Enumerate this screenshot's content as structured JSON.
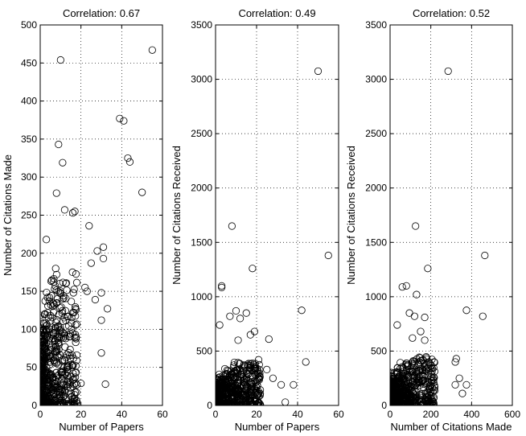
{
  "chart_data": [
    {
      "type": "scatter",
      "title": "Correlation: 0.67",
      "xlabel": "Number of Papers",
      "ylabel": "Number of Citations Made",
      "xlim": [
        0,
        60
      ],
      "ylim": [
        0,
        500
      ],
      "xticks": [
        0,
        20,
        40,
        60
      ],
      "yticks": [
        0,
        50,
        100,
        150,
        200,
        250,
        300,
        350,
        400,
        450,
        500
      ],
      "grid": true,
      "marker": "circle-open",
      "color": "#000000",
      "outliers": [
        {
          "x": 55,
          "y": 467
        },
        {
          "x": 10,
          "y": 454
        },
        {
          "x": 39,
          "y": 377
        },
        {
          "x": 41,
          "y": 374
        },
        {
          "x": 9,
          "y": 343
        },
        {
          "x": 43,
          "y": 325
        },
        {
          "x": 44,
          "y": 320
        },
        {
          "x": 11,
          "y": 319
        },
        {
          "x": 50,
          "y": 280
        },
        {
          "x": 8,
          "y": 279
        },
        {
          "x": 12,
          "y": 257
        },
        {
          "x": 17,
          "y": 255
        },
        {
          "x": 16,
          "y": 253
        },
        {
          "x": 24,
          "y": 236
        },
        {
          "x": 3,
          "y": 218
        },
        {
          "x": 31,
          "y": 208
        },
        {
          "x": 28,
          "y": 203
        },
        {
          "x": 31,
          "y": 193
        },
        {
          "x": 25,
          "y": 187
        },
        {
          "x": 22,
          "y": 155
        },
        {
          "x": 23,
          "y": 150
        },
        {
          "x": 30,
          "y": 148
        },
        {
          "x": 27,
          "y": 139
        },
        {
          "x": 33,
          "y": 127
        },
        {
          "x": 30,
          "y": 112
        },
        {
          "x": 30,
          "y": 69
        },
        {
          "x": 32,
          "y": 28
        },
        {
          "x": 16,
          "y": 25
        },
        {
          "x": 20,
          "y": 29
        }
      ],
      "cluster": {
        "x_max": 18,
        "y_max": 180,
        "point_count": 650
      }
    },
    {
      "type": "scatter",
      "title": "Correlation: 0.49",
      "xlabel": "Number of Papers",
      "ylabel": "Number of Citations Received",
      "xlim": [
        0,
        60
      ],
      "ylim": [
        0,
        3500
      ],
      "xticks": [
        0,
        20,
        40,
        60
      ],
      "yticks": [
        0,
        500,
        1000,
        1500,
        2000,
        2500,
        3000,
        3500
      ],
      "grid": true,
      "marker": "circle-open",
      "color": "#000000",
      "outliers": [
        {
          "x": 50,
          "y": 3075
        },
        {
          "x": 8,
          "y": 1650
        },
        {
          "x": 55,
          "y": 1380
        },
        {
          "x": 18,
          "y": 1260
        },
        {
          "x": 3,
          "y": 1100
        },
        {
          "x": 3,
          "y": 1085
        },
        {
          "x": 10,
          "y": 870
        },
        {
          "x": 42,
          "y": 875
        },
        {
          "x": 15,
          "y": 850
        },
        {
          "x": 7,
          "y": 820
        },
        {
          "x": 12,
          "y": 800
        },
        {
          "x": 2,
          "y": 740
        },
        {
          "x": 19,
          "y": 680
        },
        {
          "x": 17,
          "y": 650
        },
        {
          "x": 26,
          "y": 610
        },
        {
          "x": 11,
          "y": 600
        },
        {
          "x": 21,
          "y": 420
        },
        {
          "x": 44,
          "y": 400
        },
        {
          "x": 25,
          "y": 330
        },
        {
          "x": 28,
          "y": 250
        },
        {
          "x": 32,
          "y": 190
        },
        {
          "x": 38,
          "y": 190
        },
        {
          "x": 34,
          "y": 30
        }
      ],
      "cluster": {
        "x_max": 22,
        "y_max": 400,
        "point_count": 650
      }
    },
    {
      "type": "scatter",
      "title": "Correlation: 0.52",
      "xlabel": "Number of Citations Made",
      "ylabel": "Number of Citations Received",
      "xlim": [
        0,
        600
      ],
      "ylim": [
        0,
        3500
      ],
      "xticks": [
        0,
        200,
        400,
        600
      ],
      "yticks": [
        0,
        500,
        1000,
        1500,
        2000,
        2500,
        3000,
        3500
      ],
      "grid": true,
      "marker": "circle-open",
      "color": "#000000",
      "outliers": [
        {
          "x": 285,
          "y": 3075
        },
        {
          "x": 125,
          "y": 1650
        },
        {
          "x": 465,
          "y": 1380
        },
        {
          "x": 185,
          "y": 1260
        },
        {
          "x": 60,
          "y": 1090
        },
        {
          "x": 80,
          "y": 1100
        },
        {
          "x": 130,
          "y": 1020
        },
        {
          "x": 375,
          "y": 875
        },
        {
          "x": 95,
          "y": 850
        },
        {
          "x": 120,
          "y": 820
        },
        {
          "x": 455,
          "y": 820
        },
        {
          "x": 170,
          "y": 810
        },
        {
          "x": 35,
          "y": 740
        },
        {
          "x": 150,
          "y": 680
        },
        {
          "x": 110,
          "y": 620
        },
        {
          "x": 170,
          "y": 600
        },
        {
          "x": 325,
          "y": 430
        },
        {
          "x": 320,
          "y": 400
        },
        {
          "x": 340,
          "y": 250
        },
        {
          "x": 375,
          "y": 190
        },
        {
          "x": 320,
          "y": 190
        },
        {
          "x": 355,
          "y": 110
        }
      ],
      "cluster": {
        "x_max": 220,
        "y_max": 450,
        "point_count": 650
      }
    }
  ]
}
